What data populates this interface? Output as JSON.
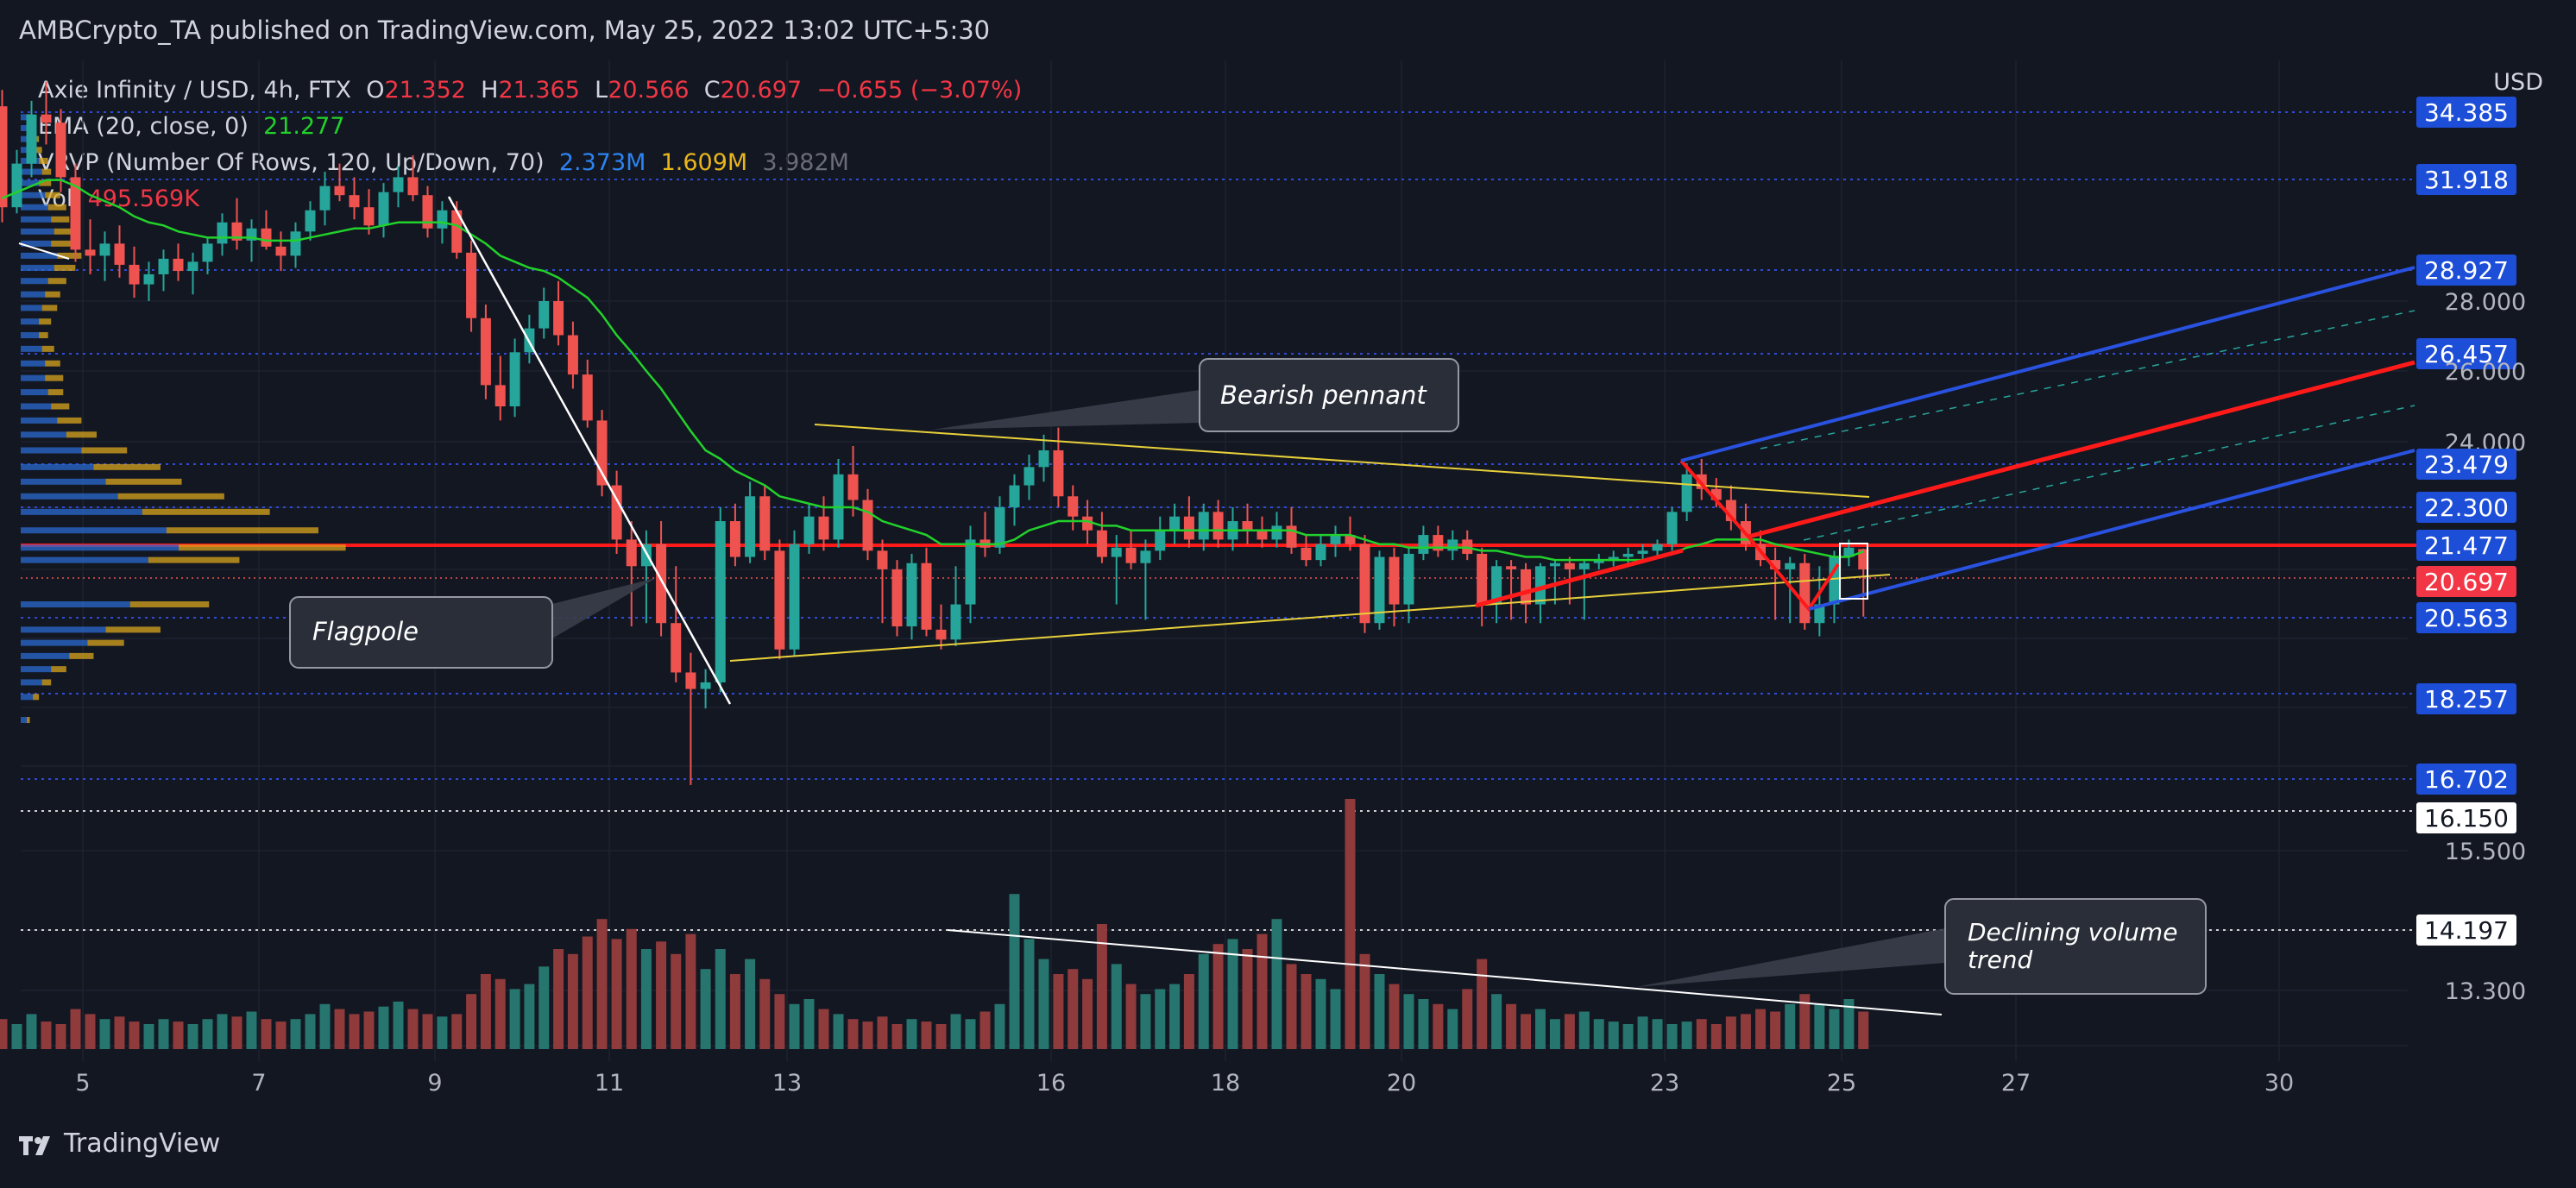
{
  "header": {
    "published": "AMBCrypto_TA published on TradingView.com, May 25, 2022 13:02 UTC+5:30"
  },
  "legend": {
    "symbol": "Axie Infinity / USD, 4h, FTX",
    "ohlc": {
      "o_label": "O",
      "o": "21.352",
      "h_label": "H",
      "h": "21.365",
      "l_label": "L",
      "l": "20.566",
      "c_label": "C",
      "c": "20.697",
      "chg": "−0.655 (−3.07%)"
    },
    "ema": {
      "label": "EMA (20, close, 0)",
      "value": "21.277"
    },
    "vrvp": {
      "label": "VRVP (Number Of Rows, 120, Up/Down, 70)",
      "up": "2.373M",
      "down": "1.609M",
      "total": "3.982M"
    },
    "vol": {
      "label": "Vol",
      "value": "495.569K"
    }
  },
  "currency": "USD",
  "colors": {
    "bg": "#131722",
    "up": "#26a69a",
    "down": "#ef5350",
    "ema": "#22d12b",
    "blue": "#2962ff",
    "red": "#ff0000",
    "yellow": "#e8d03a"
  },
  "footer": {
    "brand": "TradingView"
  },
  "chart_data": {
    "type": "candlestick",
    "x_tick_labels": [
      "5",
      "7",
      "9",
      "11",
      "13",
      "16",
      "18",
      "20",
      "23",
      "25",
      "27",
      "30"
    ],
    "y_price_labels": [
      {
        "value": "34.385",
        "style": "blue"
      },
      {
        "value": "31.918",
        "style": "blue"
      },
      {
        "value": "28.927",
        "style": "blue"
      },
      {
        "value": "28.000",
        "style": "plain"
      },
      {
        "value": "26.457",
        "style": "blue"
      },
      {
        "value": "26.000",
        "style": "plain"
      },
      {
        "value": "24.000",
        "style": "plain"
      },
      {
        "value": "23.479",
        "style": "blue"
      },
      {
        "value": "22.300",
        "style": "blue"
      },
      {
        "value": "21.477",
        "style": "blue"
      },
      {
        "value": "20.697",
        "style": "red"
      },
      {
        "value": "20.563",
        "style": "blue"
      },
      {
        "value": "18.257",
        "style": "blue"
      },
      {
        "value": "16.702",
        "style": "blue"
      },
      {
        "value": "16.150",
        "style": "white"
      },
      {
        "value": "15.500",
        "style": "plain"
      },
      {
        "value": "14.197",
        "style": "white"
      },
      {
        "value": "13.300",
        "style": "plain"
      }
    ],
    "ohlc": [
      [
        34.6,
        35.2,
        30.5,
        31.0
      ],
      [
        31.0,
        33.0,
        30.8,
        32.5
      ],
      [
        32.5,
        34.8,
        32.0,
        34.3
      ],
      [
        34.3,
        35.5,
        33.2,
        34.0
      ],
      [
        34.0,
        34.5,
        31.5,
        32.0
      ],
      [
        32.0,
        32.5,
        29.2,
        29.6
      ],
      [
        29.6,
        30.6,
        28.8,
        29.4
      ],
      [
        29.4,
        30.2,
        28.6,
        29.8
      ],
      [
        29.8,
        30.4,
        28.7,
        29.1
      ],
      [
        29.1,
        29.7,
        28.1,
        28.5
      ],
      [
        28.5,
        29.2,
        28.0,
        28.8
      ],
      [
        28.8,
        29.6,
        28.3,
        29.3
      ],
      [
        29.3,
        29.8,
        28.6,
        28.9
      ],
      [
        28.9,
        29.5,
        28.2,
        29.2
      ],
      [
        29.2,
        30.0,
        28.8,
        29.8
      ],
      [
        29.8,
        30.8,
        29.4,
        30.5
      ],
      [
        30.5,
        31.3,
        29.6,
        29.9
      ],
      [
        29.9,
        30.6,
        29.2,
        30.3
      ],
      [
        30.3,
        30.9,
        29.6,
        29.7
      ],
      [
        29.7,
        30.2,
        28.9,
        29.4
      ],
      [
        29.4,
        30.5,
        29.0,
        30.2
      ],
      [
        30.2,
        31.2,
        29.9,
        30.9
      ],
      [
        30.9,
        32.2,
        30.4,
        31.7
      ],
      [
        31.7,
        32.5,
        31.2,
        31.4
      ],
      [
        31.4,
        32.0,
        30.6,
        31.0
      ],
      [
        31.0,
        31.6,
        30.1,
        30.4
      ],
      [
        30.4,
        31.8,
        30.0,
        31.5
      ],
      [
        31.5,
        32.4,
        31.0,
        32.0
      ],
      [
        32.0,
        32.8,
        31.2,
        31.4
      ],
      [
        31.4,
        31.7,
        30.0,
        30.3
      ],
      [
        30.3,
        31.2,
        29.8,
        30.9
      ],
      [
        30.9,
        31.2,
        29.3,
        29.5
      ],
      [
        29.5,
        29.9,
        27.1,
        27.5
      ],
      [
        27.5,
        27.9,
        25.2,
        25.6
      ],
      [
        25.6,
        26.4,
        24.6,
        25.0
      ],
      [
        25.0,
        26.9,
        24.7,
        26.5
      ],
      [
        26.5,
        27.6,
        26.2,
        27.2
      ],
      [
        27.2,
        28.4,
        26.9,
        28.0
      ],
      [
        28.0,
        28.6,
        26.7,
        27.0
      ],
      [
        27.0,
        27.4,
        25.5,
        25.9
      ],
      [
        25.9,
        26.3,
        24.4,
        24.6
      ],
      [
        24.6,
        24.9,
        22.6,
        22.9
      ],
      [
        22.9,
        23.3,
        21.2,
        21.6
      ],
      [
        21.6,
        22.0,
        20.3,
        20.8
      ],
      [
        20.8,
        21.8,
        20.4,
        21.5
      ],
      [
        21.5,
        22.0,
        20.0,
        20.4
      ],
      [
        20.4,
        20.8,
        18.6,
        18.9
      ],
      [
        18.9,
        19.5,
        16.6,
        18.4
      ],
      [
        18.4,
        19.0,
        18.0,
        18.6
      ],
      [
        18.6,
        22.3,
        18.3,
        22.0
      ],
      [
        22.0,
        22.4,
        20.8,
        21.1
      ],
      [
        21.1,
        23.0,
        20.9,
        22.6
      ],
      [
        22.6,
        22.9,
        21.0,
        21.3
      ],
      [
        21.3,
        21.6,
        19.3,
        19.6
      ],
      [
        19.6,
        21.8,
        19.4,
        21.5
      ],
      [
        21.5,
        22.4,
        21.2,
        22.1
      ],
      [
        22.1,
        22.6,
        21.3,
        21.6
      ],
      [
        21.6,
        23.6,
        21.4,
        23.2
      ],
      [
        23.2,
        23.9,
        22.1,
        22.5
      ],
      [
        22.5,
        22.8,
        21.0,
        21.3
      ],
      [
        21.3,
        21.6,
        20.4,
        20.7
      ],
      [
        20.7,
        21.0,
        20.0,
        20.3
      ],
      [
        20.3,
        21.2,
        19.9,
        20.9
      ],
      [
        20.9,
        21.4,
        20.0,
        20.2
      ],
      [
        20.2,
        20.6,
        19.6,
        19.9
      ],
      [
        19.9,
        20.8,
        19.7,
        20.6
      ],
      [
        20.6,
        21.9,
        20.4,
        21.6
      ],
      [
        21.6,
        22.2,
        21.1,
        21.4
      ],
      [
        21.4,
        22.6,
        21.2,
        22.3
      ],
      [
        22.3,
        23.2,
        21.9,
        22.9
      ],
      [
        22.9,
        23.7,
        22.5,
        23.4
      ],
      [
        23.4,
        24.2,
        23.0,
        23.8
      ],
      [
        23.8,
        24.4,
        22.3,
        22.6
      ],
      [
        22.6,
        22.9,
        21.8,
        22.1
      ],
      [
        22.1,
        22.5,
        21.5,
        21.8
      ],
      [
        21.8,
        22.2,
        20.9,
        21.1
      ],
      [
        21.1,
        21.7,
        20.6,
        21.4
      ],
      [
        21.4,
        21.8,
        20.7,
        20.9
      ],
      [
        20.9,
        21.6,
        20.5,
        21.3
      ],
      [
        21.3,
        22.1,
        21.0,
        21.8
      ],
      [
        21.8,
        22.4,
        21.5,
        22.1
      ],
      [
        22.1,
        22.6,
        21.4,
        21.6
      ],
      [
        21.6,
        22.4,
        21.3,
        22.2
      ],
      [
        22.2,
        22.5,
        21.4,
        21.6
      ],
      [
        21.6,
        22.3,
        21.3,
        22.0
      ],
      [
        22.0,
        22.4,
        21.5,
        21.8
      ],
      [
        21.8,
        22.1,
        21.4,
        21.6
      ],
      [
        21.6,
        22.2,
        21.4,
        21.9
      ],
      [
        21.9,
        22.3,
        21.2,
        21.4
      ],
      [
        21.4,
        21.7,
        20.8,
        21.0
      ],
      [
        21.0,
        21.7,
        20.8,
        21.5
      ],
      [
        21.5,
        21.9,
        21.1,
        21.7
      ],
      [
        21.7,
        22.1,
        21.3,
        21.5
      ],
      [
        21.5,
        21.7,
        20.1,
        20.4
      ],
      [
        20.4,
        21.3,
        20.2,
        21.1
      ],
      [
        21.1,
        21.4,
        20.3,
        20.6
      ],
      [
        20.6,
        21.4,
        20.4,
        21.2
      ],
      [
        21.2,
        21.9,
        21.0,
        21.7
      ],
      [
        21.7,
        21.9,
        21.1,
        21.3
      ],
      [
        21.3,
        21.8,
        21.0,
        21.6
      ],
      [
        21.6,
        21.8,
        21.0,
        21.2
      ],
      [
        21.2,
        21.4,
        20.3,
        20.6
      ],
      [
        20.6,
        21.0,
        20.4,
        20.8
      ],
      [
        20.8,
        21.0,
        20.5,
        20.7
      ],
      [
        20.7,
        20.9,
        20.4,
        20.6
      ],
      [
        20.6,
        20.9,
        20.4,
        20.8
      ],
      [
        20.8,
        21.0,
        20.6,
        20.9
      ],
      [
        20.9,
        21.1,
        20.6,
        20.7
      ],
      [
        20.7,
        21.0,
        20.5,
        20.9
      ],
      [
        20.9,
        21.2,
        20.7,
        21.0
      ],
      [
        21.0,
        21.3,
        20.8,
        21.1
      ],
      [
        21.1,
        21.4,
        20.9,
        21.2
      ],
      [
        21.2,
        21.5,
        21.0,
        21.3
      ],
      [
        21.3,
        21.6,
        21.1,
        21.5
      ],
      [
        21.5,
        22.3,
        21.3,
        22.2
      ],
      [
        22.2,
        23.5,
        22.0,
        23.2
      ],
      [
        23.2,
        23.6,
        22.5,
        22.8
      ],
      [
        22.8,
        23.1,
        22.3,
        22.5
      ],
      [
        22.5,
        22.9,
        21.8,
        22.0
      ],
      [
        22.0,
        22.4,
        21.3,
        21.5
      ],
      [
        21.5,
        21.8,
        20.8,
        21.0
      ],
      [
        21.0,
        21.4,
        20.5,
        20.7
      ],
      [
        20.7,
        21.1,
        20.4,
        20.9
      ],
      [
        20.9,
        21.2,
        20.2,
        20.4
      ],
      [
        20.4,
        20.8,
        20.0,
        20.6
      ],
      [
        20.6,
        21.3,
        20.4,
        21.1
      ],
      [
        21.1,
        21.6,
        20.8,
        21.4
      ],
      [
        21.352,
        21.365,
        20.566,
        20.697
      ]
    ],
    "ema20": [
      31.3,
      31.5,
      31.7,
      31.9,
      31.9,
      31.7,
      31.4,
      31.2,
      31.0,
      30.7,
      30.5,
      30.4,
      30.2,
      30.1,
      30.0,
      30.0,
      30.0,
      30.0,
      29.9,
      29.9,
      29.9,
      30.0,
      30.1,
      30.2,
      30.3,
      30.3,
      30.4,
      30.5,
      30.5,
      30.5,
      30.5,
      30.4,
      30.1,
      29.8,
      29.4,
      29.2,
      29.0,
      28.9,
      28.7,
      28.4,
      28.1,
      27.6,
      27.0,
      26.5,
      26.0,
      25.5,
      24.9,
      24.3,
      23.8,
      23.6,
      23.3,
      23.1,
      22.9,
      22.6,
      22.5,
      22.4,
      22.3,
      22.3,
      22.3,
      22.2,
      22.0,
      21.9,
      21.8,
      21.7,
      21.5,
      21.5,
      21.5,
      21.5,
      21.5,
      21.6,
      21.8,
      21.9,
      22.0,
      22.0,
      22.0,
      21.9,
      21.9,
      21.8,
      21.8,
      21.8,
      21.8,
      21.8,
      21.8,
      21.8,
      21.8,
      21.8,
      21.8,
      21.8,
      21.8,
      21.7,
      21.7,
      21.7,
      21.7,
      21.6,
      21.5,
      21.5,
      21.4,
      21.4,
      21.4,
      21.4,
      21.4,
      21.3,
      21.3,
      21.2,
      21.1,
      21.1,
      21.0,
      21.0,
      21.0,
      21.0,
      21.0,
      21.0,
      21.0,
      21.1,
      21.2,
      21.4,
      21.5,
      21.6,
      21.6,
      21.6,
      21.6,
      21.5,
      21.4,
      21.3,
      21.2,
      21.1,
      21.1,
      21.277
    ],
    "volume": [
      0.12,
      0.1,
      0.14,
      0.11,
      0.1,
      0.16,
      0.14,
      0.12,
      0.13,
      0.11,
      0.1,
      0.12,
      0.11,
      0.1,
      0.12,
      0.14,
      0.13,
      0.15,
      0.12,
      0.11,
      0.12,
      0.14,
      0.18,
      0.16,
      0.14,
      0.15,
      0.17,
      0.19,
      0.16,
      0.14,
      0.13,
      0.14,
      0.22,
      0.3,
      0.28,
      0.24,
      0.26,
      0.33,
      0.4,
      0.38,
      0.45,
      0.52,
      0.44,
      0.48,
      0.4,
      0.43,
      0.38,
      0.46,
      0.32,
      0.4,
      0.3,
      0.36,
      0.28,
      0.22,
      0.18,
      0.2,
      0.16,
      0.14,
      0.12,
      0.11,
      0.13,
      0.1,
      0.12,
      0.11,
      0.1,
      0.14,
      0.12,
      0.15,
      0.18,
      0.62,
      0.44,
      0.36,
      0.3,
      0.32,
      0.28,
      0.5,
      0.34,
      0.26,
      0.22,
      0.24,
      0.26,
      0.3,
      0.38,
      0.42,
      0.44,
      0.4,
      0.46,
      0.52,
      0.34,
      0.3,
      0.28,
      0.24,
      1.0,
      0.38,
      0.3,
      0.26,
      0.22,
      0.2,
      0.18,
      0.16,
      0.24,
      0.36,
      0.22,
      0.18,
      0.14,
      0.16,
      0.12,
      0.14,
      0.15,
      0.12,
      0.11,
      0.1,
      0.13,
      0.12,
      0.1,
      0.11,
      0.12,
      0.1,
      0.13,
      0.14,
      0.16,
      0.15,
      0.18,
      0.22,
      0.18,
      0.16,
      0.2,
      0.15,
      0.12,
      0.14,
      0.1,
      0.11
    ],
    "vrvp_rows": [
      {
        "price": 34.2,
        "up": 0.02,
        "down": 0.01
      },
      {
        "price": 33.8,
        "up": 0.03,
        "down": 0.01
      },
      {
        "price": 33.4,
        "up": 0.04,
        "down": 0.02
      },
      {
        "price": 33.0,
        "up": 0.05,
        "down": 0.02
      },
      {
        "price": 32.6,
        "up": 0.06,
        "down": 0.03
      },
      {
        "price": 32.2,
        "up": 0.07,
        "down": 0.03
      },
      {
        "price": 31.8,
        "up": 0.06,
        "down": 0.04
      },
      {
        "price": 31.4,
        "up": 0.08,
        "down": 0.05
      },
      {
        "price": 31.0,
        "up": 0.09,
        "down": 0.06
      },
      {
        "price": 30.6,
        "up": 0.1,
        "down": 0.06
      },
      {
        "price": 30.2,
        "up": 0.11,
        "down": 0.08
      },
      {
        "price": 29.8,
        "up": 0.1,
        "down": 0.07
      },
      {
        "price": 29.4,
        "up": 0.12,
        "down": 0.08
      },
      {
        "price": 29.0,
        "up": 0.11,
        "down": 0.07
      },
      {
        "price": 28.6,
        "up": 0.09,
        "down": 0.06
      },
      {
        "price": 28.2,
        "up": 0.08,
        "down": 0.05
      },
      {
        "price": 27.8,
        "up": 0.07,
        "down": 0.05
      },
      {
        "price": 27.4,
        "up": 0.06,
        "down": 0.04
      },
      {
        "price": 27.0,
        "up": 0.06,
        "down": 0.03
      },
      {
        "price": 26.6,
        "up": 0.07,
        "down": 0.04
      },
      {
        "price": 26.2,
        "up": 0.08,
        "down": 0.05
      },
      {
        "price": 25.8,
        "up": 0.08,
        "down": 0.06
      },
      {
        "price": 25.4,
        "up": 0.09,
        "down": 0.05
      },
      {
        "price": 25.0,
        "up": 0.1,
        "down": 0.06
      },
      {
        "price": 24.6,
        "up": 0.12,
        "down": 0.08
      },
      {
        "price": 24.2,
        "up": 0.15,
        "down": 0.1
      },
      {
        "price": 23.8,
        "up": 0.2,
        "down": 0.15
      },
      {
        "price": 23.4,
        "up": 0.24,
        "down": 0.22
      },
      {
        "price": 23.0,
        "up": 0.28,
        "down": 0.25
      },
      {
        "price": 22.6,
        "up": 0.32,
        "down": 0.35
      },
      {
        "price": 22.2,
        "up": 0.4,
        "down": 0.42
      },
      {
        "price": 21.8,
        "up": 0.48,
        "down": 0.5
      },
      {
        "price": 21.4,
        "up": 0.52,
        "down": 0.55
      },
      {
        "price": 21.0,
        "up": 0.42,
        "down": 0.3
      },
      {
        "price": 20.6,
        "up": 0.36,
        "down": 0.26
      },
      {
        "price": 20.2,
        "up": 0.28,
        "down": 0.18
      },
      {
        "price": 19.8,
        "up": 0.22,
        "down": 0.12
      },
      {
        "price": 19.4,
        "up": 0.16,
        "down": 0.08
      },
      {
        "price": 19.0,
        "up": 0.1,
        "down": 0.05
      },
      {
        "price": 18.6,
        "up": 0.07,
        "down": 0.03
      },
      {
        "price": 18.2,
        "up": 0.04,
        "down": 0.02
      },
      {
        "price": 17.8,
        "up": 0.02,
        "down": 0.01
      }
    ],
    "annotations": {
      "bearish_pennant": "Bearish pennant",
      "flagpole": "Flagpole",
      "declining_volume": "Declining volume trend"
    }
  }
}
